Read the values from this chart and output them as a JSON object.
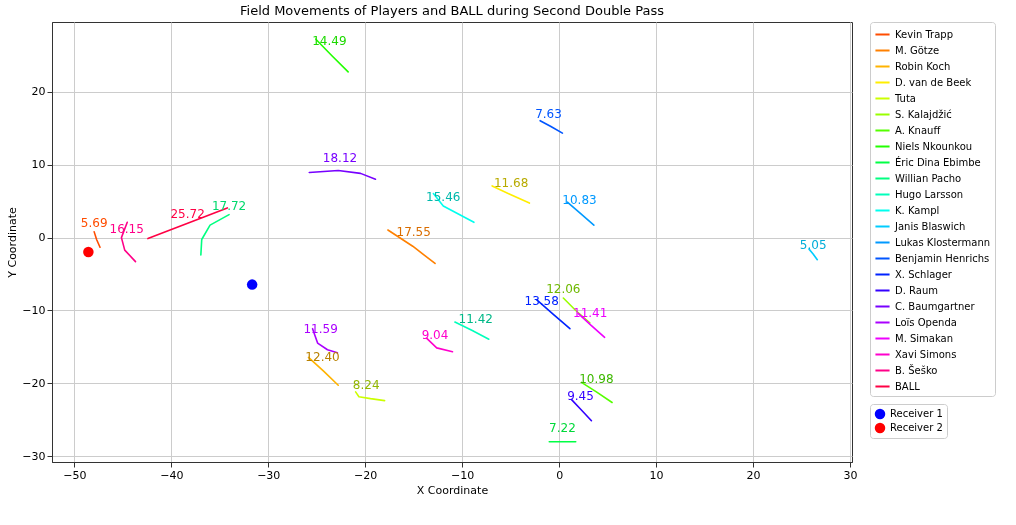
{
  "chart_data": {
    "type": "line",
    "title": "Field Movements of Players and BALL during Second Double Pass",
    "xlabel": "X Coordinate",
    "ylabel": "Y Coordinate",
    "xlim": [
      -52.3,
      30.2
    ],
    "ylim": [
      -30.8,
      29.6
    ],
    "xticks": [
      -50,
      -40,
      -30,
      -20,
      -10,
      0,
      10,
      20,
      30
    ],
    "yticks": [
      -30,
      -20,
      -10,
      0,
      10,
      20
    ],
    "grid": true,
    "legend": "top right",
    "series": [
      {
        "name": "Kevin Trapp",
        "color": "#ff4d00",
        "x": [
          -47.95,
          -47.7,
          -47.35
        ],
        "values": [
          0.79,
          -0.26,
          -1.32
        ]
      },
      {
        "name": "M. Götze",
        "color": "#ff8000",
        "x": [
          -17.66,
          -15.1,
          -12.8
        ],
        "values": [
          1.05,
          -1.18,
          -3.55
        ]
      },
      {
        "name": "Robin Koch",
        "color": "#ffb300",
        "x": [
          -25.85,
          -24.32,
          -22.78
        ],
        "values": [
          -16.45,
          -18.29,
          -20.26
        ]
      },
      {
        "name": "D. van de Beek",
        "color": "#ffee00",
        "x": [
          -6.91,
          -5.03,
          -3.07
        ],
        "values": [
          7.1,
          5.92,
          4.74
        ]
      },
      {
        "name": "Tuta",
        "color": "#ccff00",
        "x": [
          -20.99,
          -20.65,
          -19.45,
          -18.0
        ],
        "values": [
          -21.18,
          -21.84,
          -22.1,
          -22.37
        ]
      },
      {
        "name": "S. Kalajdžić",
        "color": "#99ff00",
        "x": [
          0.43,
          1.71,
          3.16
        ],
        "values": [
          -8.29,
          -10.0,
          -11.71
        ]
      },
      {
        "name": "A. Knauff",
        "color": "#55ff00",
        "x": [
          2.3,
          3.84,
          5.46
        ],
        "values": [
          -19.87,
          -21.18,
          -22.63
        ]
      },
      {
        "name": "Niels Nkounkou",
        "color": "#22ff00",
        "x": [
          -25.09,
          -23.46,
          -21.76
        ],
        "values": [
          27.24,
          25.0,
          22.76
        ]
      },
      {
        "name": "Éric Dina Ebimbe",
        "color": "#00ff44",
        "x": [
          -1.02,
          0.34,
          1.71
        ],
        "values": [
          -28.03,
          -28.03,
          -28.03
        ]
      },
      {
        "name": "Willian Pacho",
        "color": "#00ff80",
        "x": [
          -36.95,
          -36.86,
          -36.0,
          -34.04
        ],
        "values": [
          -2.37,
          -0.26,
          1.71,
          3.16
        ]
      },
      {
        "name": "Hugo Larsson",
        "color": "#00ffbb",
        "x": [
          -10.75,
          -8.96,
          -7.25
        ],
        "values": [
          -11.58,
          -12.76,
          -13.95
        ]
      },
      {
        "name": "K. Kampl",
        "color": "#00ffee",
        "x": [
          -12.97,
          -11.95,
          -8.79
        ],
        "values": [
          6.05,
          4.34,
          2.1
        ]
      },
      {
        "name": "Janis Blaswich",
        "color": "#00ccff",
        "x": [
          25.77,
          26.19,
          26.62
        ],
        "values": [
          -1.58,
          -2.24,
          -3.03
        ]
      },
      {
        "name": "Lukas Klostermann",
        "color": "#0099ff",
        "x": [
          0.85,
          2.22,
          3.58
        ],
        "values": [
          4.87,
          3.29,
          1.71
        ]
      },
      {
        "name": "Benjamin Henrichs",
        "color": "#0055ff",
        "x": [
          -1.96,
          -0.85,
          0.34
        ],
        "values": [
          16.05,
          15.26,
          14.34
        ]
      },
      {
        "name": "X. Schlager",
        "color": "#0022ff",
        "x": [
          -2.3,
          -0.6,
          1.11
        ],
        "values": [
          -8.55,
          -10.53,
          -12.5
        ]
      },
      {
        "name": "D. Raum",
        "color": "#3300ff",
        "x": [
          1.28,
          2.22,
          3.33
        ],
        "values": [
          -22.24,
          -23.55,
          -25.13
        ]
      },
      {
        "name": "C. Baumgartner",
        "color": "#7700ff",
        "x": [
          -25.77,
          -22.78,
          -20.48,
          -18.94
        ],
        "values": [
          8.95,
          9.21,
          8.82,
          8.03
        ]
      },
      {
        "name": "Loïs Openda",
        "color": "#aa00ff",
        "x": [
          -25.43,
          -24.91,
          -23.89,
          -22.87
        ],
        "values": [
          -12.5,
          -14.47,
          -15.39,
          -15.79
        ]
      },
      {
        "name": "M. Simakan",
        "color": "#ee00ff",
        "x": [
          1.96,
          3.24,
          4.69
        ],
        "values": [
          -10.39,
          -11.97,
          -13.68
        ]
      },
      {
        "name": "Xavi Simons",
        "color": "#ff00cc",
        "x": [
          -13.65,
          -12.63,
          -11.0
        ],
        "values": [
          -13.82,
          -15.13,
          -15.66
        ]
      },
      {
        "name": "B. Šeško",
        "color": "#ff0088",
        "x": [
          -44.54,
          -45.14,
          -44.8,
          -43.69
        ],
        "values": [
          2.1,
          0,
          -1.71,
          -3.29
        ]
      },
      {
        "name": "BALL",
        "color": "#ff0044",
        "x": [
          -42.41,
          -38.31,
          -34.22
        ],
        "values": [
          -0.13,
          1.97,
          4.08
        ]
      },
      {
        "name": "Receiver 1",
        "type": "scatter",
        "color": "#0000ff",
        "x": [
          -31.66
        ],
        "values": [
          -6.45
        ]
      },
      {
        "name": "Receiver 2",
        "type": "scatter",
        "color": "#ff0000",
        "x": [
          -48.55
        ],
        "values": [
          -1.97
        ]
      }
    ],
    "annotations": [
      {
        "text": "5.69",
        "x": -47.95,
        "y": 0.79
      },
      {
        "text": "17.55",
        "x": -15.0,
        "y": -0.4
      },
      {
        "text": "12.40",
        "x": -24.4,
        "y": -17.6
      },
      {
        "text": "11.68",
        "x": -4.95,
        "y": 6.3
      },
      {
        "text": "8.24",
        "x": -19.9,
        "y": -21.4
      },
      {
        "text": "12.06",
        "x": 0.43,
        "y": -8.29
      },
      {
        "text": "10.98",
        "x": 3.84,
        "y": -20.7
      },
      {
        "text": "14.49",
        "x": -23.7,
        "y": 25.8
      },
      {
        "text": "7.22",
        "x": 0.34,
        "y": -27.4
      },
      {
        "text": "17.72",
        "x": -34.04,
        "y": 3.16
      },
      {
        "text": "11.42",
        "x": -8.6,
        "y": -12.4
      },
      {
        "text": "15.46",
        "x": -11.95,
        "y": 4.34
      },
      {
        "text": "5.05",
        "x": 26.2,
        "y": -2.2
      },
      {
        "text": "10.83",
        "x": 2.1,
        "y": 3.95
      },
      {
        "text": "7.63",
        "x": -1.1,
        "y": 15.8
      },
      {
        "text": "13.58",
        "x": -1.8,
        "y": -9.9
      },
      {
        "text": "9.45",
        "x": 2.2,
        "y": -23.0
      },
      {
        "text": "18.12",
        "x": -22.6,
        "y": 9.7
      },
      {
        "text": "11.59",
        "x": -24.6,
        "y": -13.8
      },
      {
        "text": "11.41",
        "x": 3.2,
        "y": -11.6
      },
      {
        "text": "9.04",
        "x": -12.8,
        "y": -14.6
      },
      {
        "text": "16.15",
        "x": -44.6,
        "y": 0
      },
      {
        "text": "25.72",
        "x": -38.31,
        "y": 1.97
      }
    ]
  }
}
